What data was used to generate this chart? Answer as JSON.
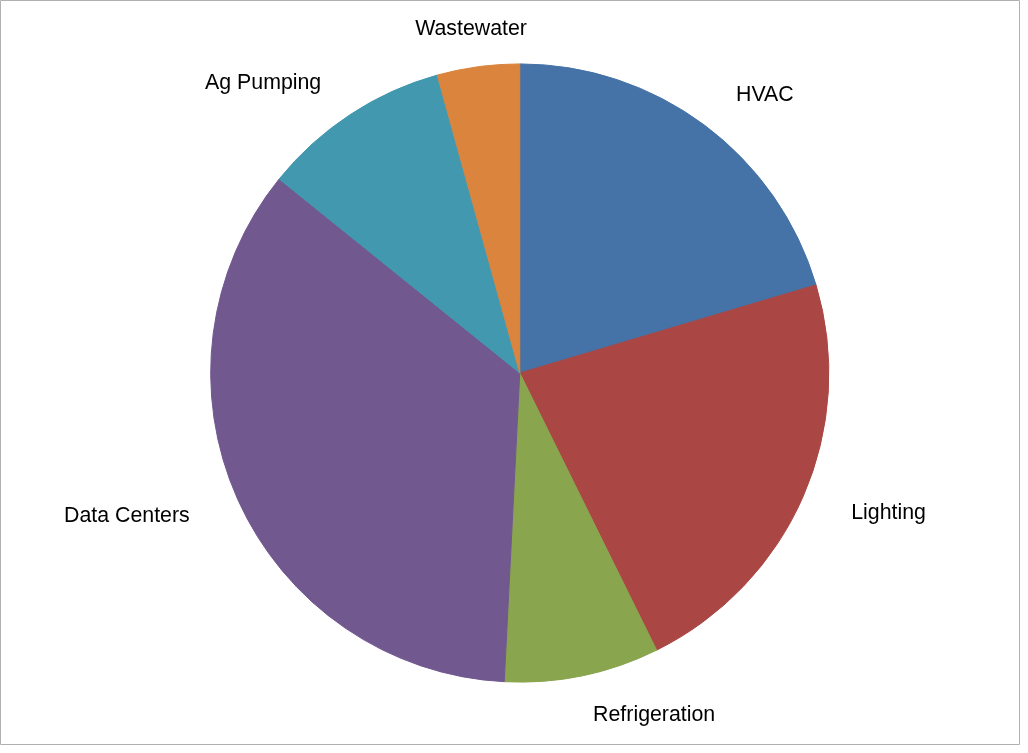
{
  "chart_data": {
    "type": "pie",
    "categories": [
      "HVAC",
      "Lighting",
      "Refrigeration",
      "Data Centers",
      "Ag Pumping",
      "Wastewater"
    ],
    "values": [
      20.4,
      22.3,
      8.1,
      35.0,
      9.9,
      4.3
    ],
    "colors": [
      "#4572a7",
      "#aa4643",
      "#89a54e",
      "#71588f",
      "#4198af",
      "#db843d"
    ]
  }
}
